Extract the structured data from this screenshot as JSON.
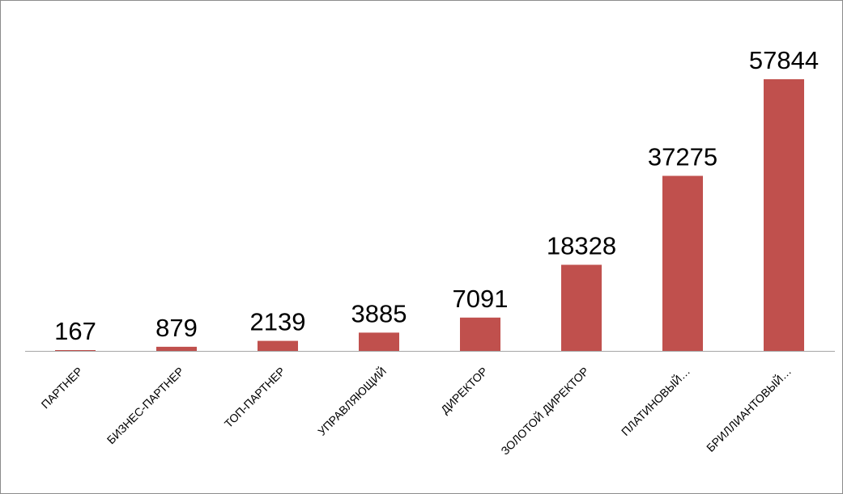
{
  "chart_data": {
    "type": "bar",
    "categories": [
      "ПАРТНЕР",
      "БИЗНЕС-ПАРТНЕР",
      "ТОП-ПАРТНЕР",
      "УПРАВЛЯЮЩИЙ",
      "ДИРЕКТОР",
      "ЗОЛОТОЙ ДИРЕКТОР",
      "ПЛАТИНОВЫЙ…",
      "БРИЛЛИАНТОВЫЙ…"
    ],
    "values": [
      167,
      879,
      2139,
      3885,
      7091,
      18328,
      37275,
      57844
    ],
    "value_labels": [
      "167",
      "879",
      "2139",
      "3885",
      "7091",
      "18328",
      "37275",
      "57844"
    ],
    "bar_color": "#c0504d",
    "axis_color": "#a6a6a6",
    "grid": false,
    "legend": "none",
    "ylim": [
      0,
      60000
    ]
  }
}
